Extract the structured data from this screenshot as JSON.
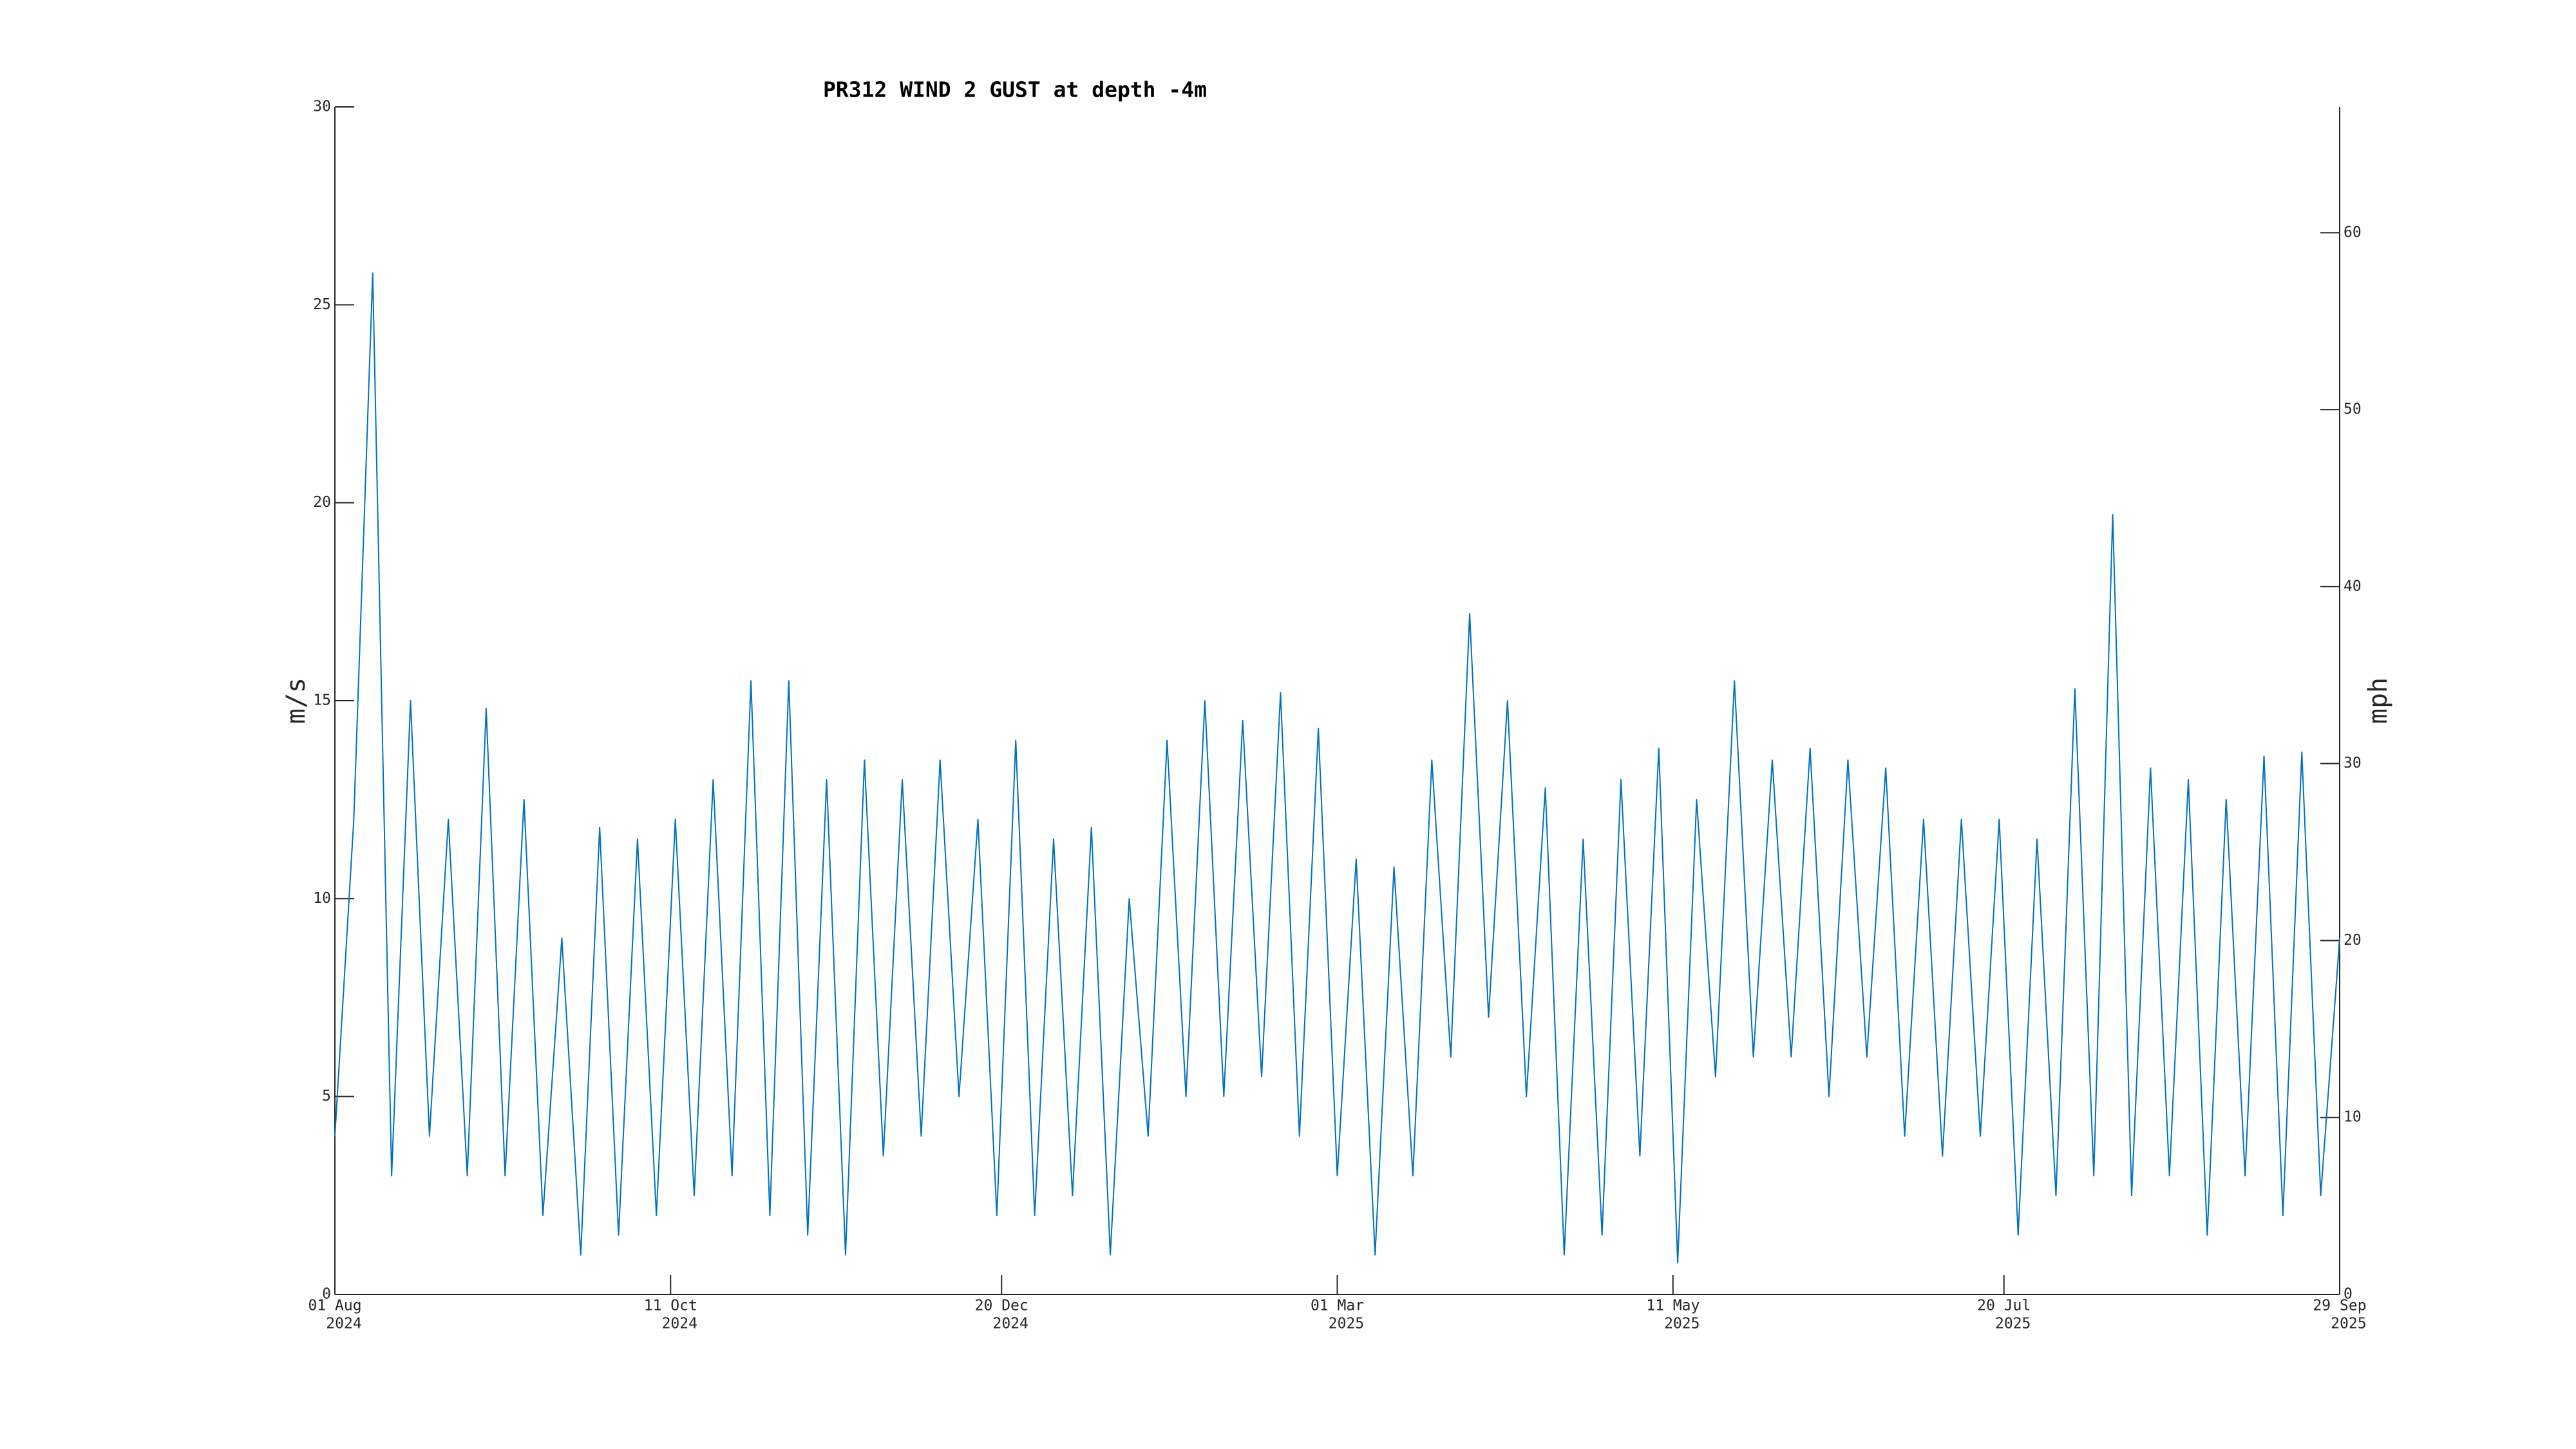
{
  "chart_data": {
    "type": "line",
    "title": "PR312 WIND 2 GUST at depth -4m",
    "y_label": "m/s",
    "y2_label": "mph",
    "xlim": [
      "2024-08-01",
      "2025-09-29"
    ],
    "xticks": [
      {
        "value": "2024-08-01",
        "label": [
          "01 Aug",
          "2024"
        ]
      },
      {
        "value": "2024-10-11",
        "label": [
          "11 Oct",
          "2024"
        ]
      },
      {
        "value": "2024-12-20",
        "label": [
          "20 Dec",
          "2024"
        ]
      },
      {
        "value": "2025-03-01",
        "label": [
          "01 Mar",
          "2025"
        ]
      },
      {
        "value": "2025-05-11",
        "label": [
          "11 May",
          "2025"
        ]
      },
      {
        "value": "2025-07-20",
        "label": [
          "20 Jul",
          "2025"
        ]
      },
      {
        "value": "2025-09-29",
        "label": [
          "29 Sep",
          "2025"
        ]
      }
    ],
    "ylim": [
      0,
      30
    ],
    "yticks": [
      0,
      5,
      10,
      15,
      20,
      25,
      30
    ],
    "y2lim": [
      0,
      67.108
    ],
    "y2ticks": [
      0,
      10,
      20,
      30,
      40,
      50,
      60
    ],
    "grid": false,
    "x": [
      "2024-08-01",
      "2024-08-05",
      "2024-08-09",
      "2024-08-13",
      "2024-08-17",
      "2024-08-21",
      "2024-08-25",
      "2024-08-29",
      "2024-09-02",
      "2024-09-06",
      "2024-09-10",
      "2024-09-14",
      "2024-09-18",
      "2024-09-22",
      "2024-09-26",
      "2024-09-30",
      "2024-10-04",
      "2024-10-08",
      "2024-10-12",
      "2024-10-16",
      "2024-10-20",
      "2024-10-24",
      "2024-10-28",
      "2024-11-01",
      "2024-11-05",
      "2024-11-09",
      "2024-11-13",
      "2024-11-17",
      "2024-11-21",
      "2024-11-25",
      "2024-11-29",
      "2024-12-03",
      "2024-12-07",
      "2024-12-11",
      "2024-12-15",
      "2024-12-19",
      "2024-12-23",
      "2024-12-27",
      "2024-12-31",
      "2025-01-04",
      "2025-01-08",
      "2025-01-12",
      "2025-01-16",
      "2025-01-20",
      "2025-01-24",
      "2025-01-28",
      "2025-02-01",
      "2025-02-05",
      "2025-02-09",
      "2025-02-13",
      "2025-02-17",
      "2025-02-21",
      "2025-02-25",
      "2025-03-01",
      "2025-03-05",
      "2025-03-09",
      "2025-03-13",
      "2025-03-17",
      "2025-03-21",
      "2025-03-25",
      "2025-03-29",
      "2025-04-02",
      "2025-04-06",
      "2025-04-10",
      "2025-04-14",
      "2025-04-18",
      "2025-04-22",
      "2025-04-26",
      "2025-04-30",
      "2025-05-04",
      "2025-05-08",
      "2025-05-12",
      "2025-05-16",
      "2025-05-20",
      "2025-05-24",
      "2025-05-28",
      "2025-06-01",
      "2025-06-05",
      "2025-06-09",
      "2025-06-13",
      "2025-06-17",
      "2025-06-21",
      "2025-06-25",
      "2025-06-29",
      "2025-07-03",
      "2025-07-07",
      "2025-07-11",
      "2025-07-15",
      "2025-07-19",
      "2025-07-23",
      "2025-07-27",
      "2025-07-31",
      "2025-08-04",
      "2025-08-08",
      "2025-08-12",
      "2025-08-16",
      "2025-08-20",
      "2025-08-24",
      "2025-08-28",
      "2025-09-01",
      "2025-09-05",
      "2025-09-09",
      "2025-09-13",
      "2025-09-17",
      "2025-09-21",
      "2025-09-25",
      "2025-09-29"
    ],
    "series": [
      {
        "name": "PR312 WIND 2 GUST",
        "color": "#0072bd",
        "values": [
          4,
          12,
          25.8,
          3,
          15,
          4,
          12,
          3,
          14.8,
          3,
          12.5,
          2,
          9,
          1,
          11.8,
          1.5,
          11.5,
          2,
          12,
          2.5,
          13,
          3,
          15.5,
          2,
          15.5,
          1.5,
          13,
          1,
          13.5,
          3.5,
          13,
          4,
          13.5,
          5,
          12,
          2,
          14,
          2,
          11.5,
          2.5,
          11.8,
          1,
          10,
          4,
          14,
          5,
          15,
          5,
          14.5,
          5.5,
          15.2,
          4,
          14.3,
          3,
          11,
          1,
          10.8,
          3,
          13.5,
          6,
          17.2,
          7,
          15,
          5,
          12.8,
          1,
          11.5,
          1.5,
          13,
          3.5,
          13.8,
          0.8,
          12.5,
          5.5,
          15.5,
          6,
          13.5,
          6,
          13.8,
          5,
          13.5,
          6,
          13.3,
          4,
          12,
          3.5,
          12,
          4,
          12,
          1.5,
          11.5,
          2.5,
          15.3,
          3,
          19.7,
          2.5,
          13.3,
          3,
          13,
          1.5,
          12.5,
          3,
          13.6,
          2,
          13.7,
          2.5,
          9
        ]
      }
    ]
  }
}
